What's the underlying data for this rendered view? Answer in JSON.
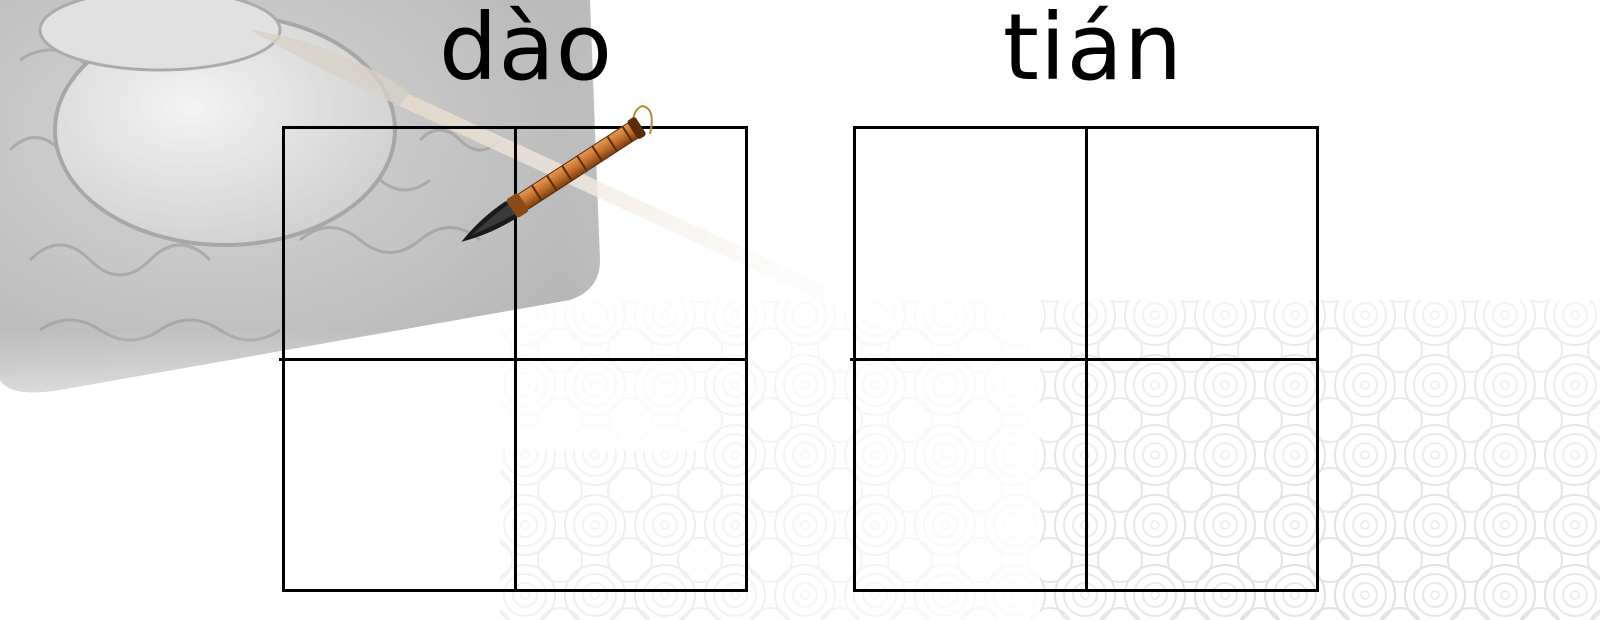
{
  "practice": {
    "characters": [
      {
        "pinyin": "dào"
      },
      {
        "pinyin": "tián"
      }
    ]
  },
  "decor": {
    "background": "inkstone-brush-photo",
    "pattern": "swirl-cloud-pattern",
    "cursor_icon": "brush-icon"
  },
  "colors": {
    "grid_line": "#000000",
    "text": "#000000",
    "brush_handle": "#c4702b",
    "brush_tip": "#1a1a1a"
  }
}
